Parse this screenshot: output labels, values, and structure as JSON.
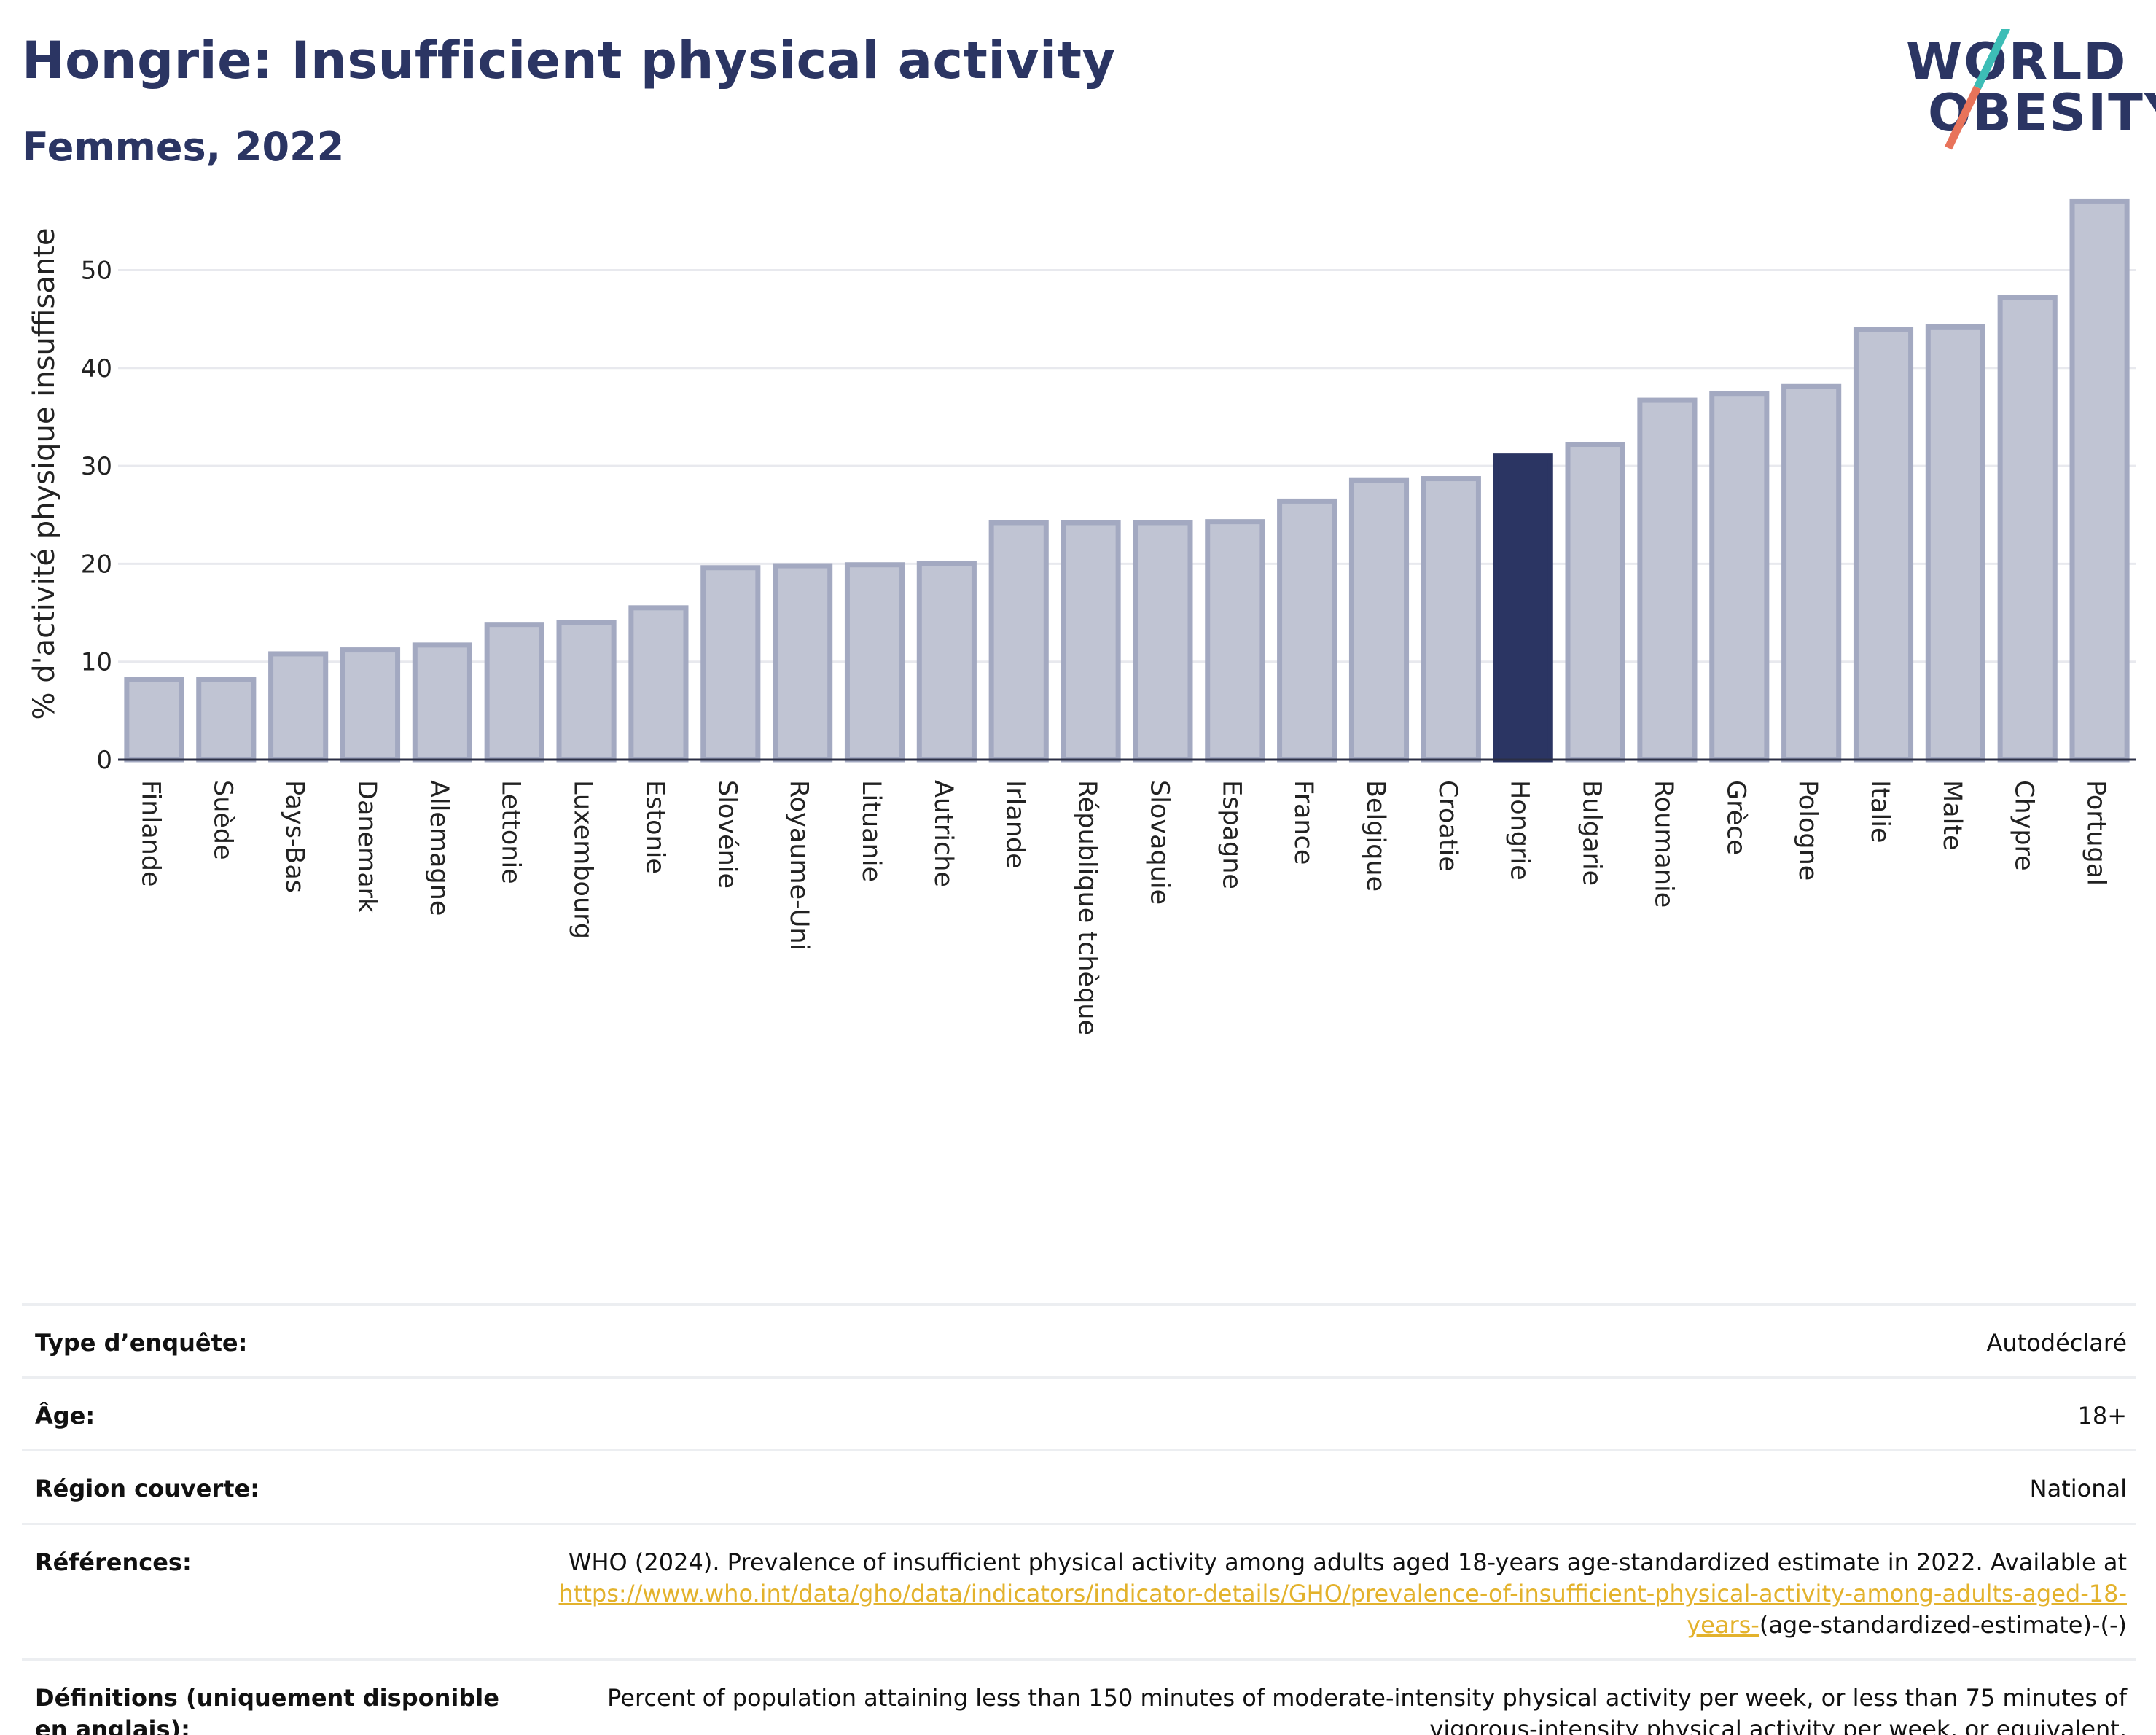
{
  "header": {
    "title": "Hongrie: Insufficient physical activity",
    "subtitle": "Femmes, 2022"
  },
  "logo": {
    "line1": "WORLD",
    "line2": "OBESITY",
    "accent_colors": [
      "#3dbdb6",
      "#e8735a"
    ]
  },
  "colors": {
    "highlight_bar": "#2b3563",
    "other_bar_fill": "#c0c4d3",
    "other_bar_stroke": "#a3a9c1",
    "grid": "#e8e9ee",
    "axis": "#2b2f45"
  },
  "chart_data": {
    "type": "bar",
    "ylabel": "% d'activité physique insuffisante",
    "ylim": [
      0,
      58
    ],
    "yticks": [
      0,
      10,
      20,
      30,
      40,
      50
    ],
    "grid": true,
    "highlight": "Hongrie",
    "categories": [
      "Finlande",
      "Suède",
      "Pays-Bas",
      "Danemark",
      "Allemagne",
      "Lettonie",
      "Luxembourg",
      "Estonie",
      "Slovénie",
      "Royaume-Uni",
      "Lituanie",
      "Autriche",
      "Irlande",
      "République tchèque",
      "Slovaquie",
      "Espagne",
      "France",
      "Belgique",
      "Croatie",
      "Hongrie",
      "Bulgarie",
      "Roumanie",
      "Grèce",
      "Pologne",
      "Italie",
      "Malte",
      "Chypre",
      "Portugal"
    ],
    "values": [
      8.2,
      8.2,
      10.8,
      11.2,
      11.7,
      13.8,
      14.0,
      15.5,
      19.6,
      19.8,
      19.9,
      20.0,
      24.2,
      24.2,
      24.2,
      24.3,
      26.4,
      28.5,
      28.7,
      31.0,
      32.2,
      36.7,
      37.4,
      38.1,
      43.9,
      44.2,
      47.2,
      57.0
    ]
  },
  "info": {
    "rows": [
      {
        "label": "Type d’enquête:",
        "value": "Autodéclaré"
      },
      {
        "label": "Âge:",
        "value": "18+"
      },
      {
        "label": "Région couverte:",
        "value": "National"
      }
    ],
    "references": {
      "label": "Références:",
      "text": "WHO (2024). Prevalence of insufficient physical activity among adults aged 18-years age-standardized estimate in 2022. Available at",
      "link": "https://www.who.int/data/gho/data/indicators/indicator-details/GHO/prevalence-of-insufficient-physical-activity-among-adults-aged-18-years-",
      "suffix": "(age-standardized-estimate)-(-)"
    },
    "definitions": {
      "label": "Définitions (uniquement disponible en anglais):",
      "value": "Percent of population attaining less than 150 minutes of moderate-intensity physical activity per week, or less than 75 minutes of vigorous-intensity physical activity per week, or equivalent."
    }
  }
}
